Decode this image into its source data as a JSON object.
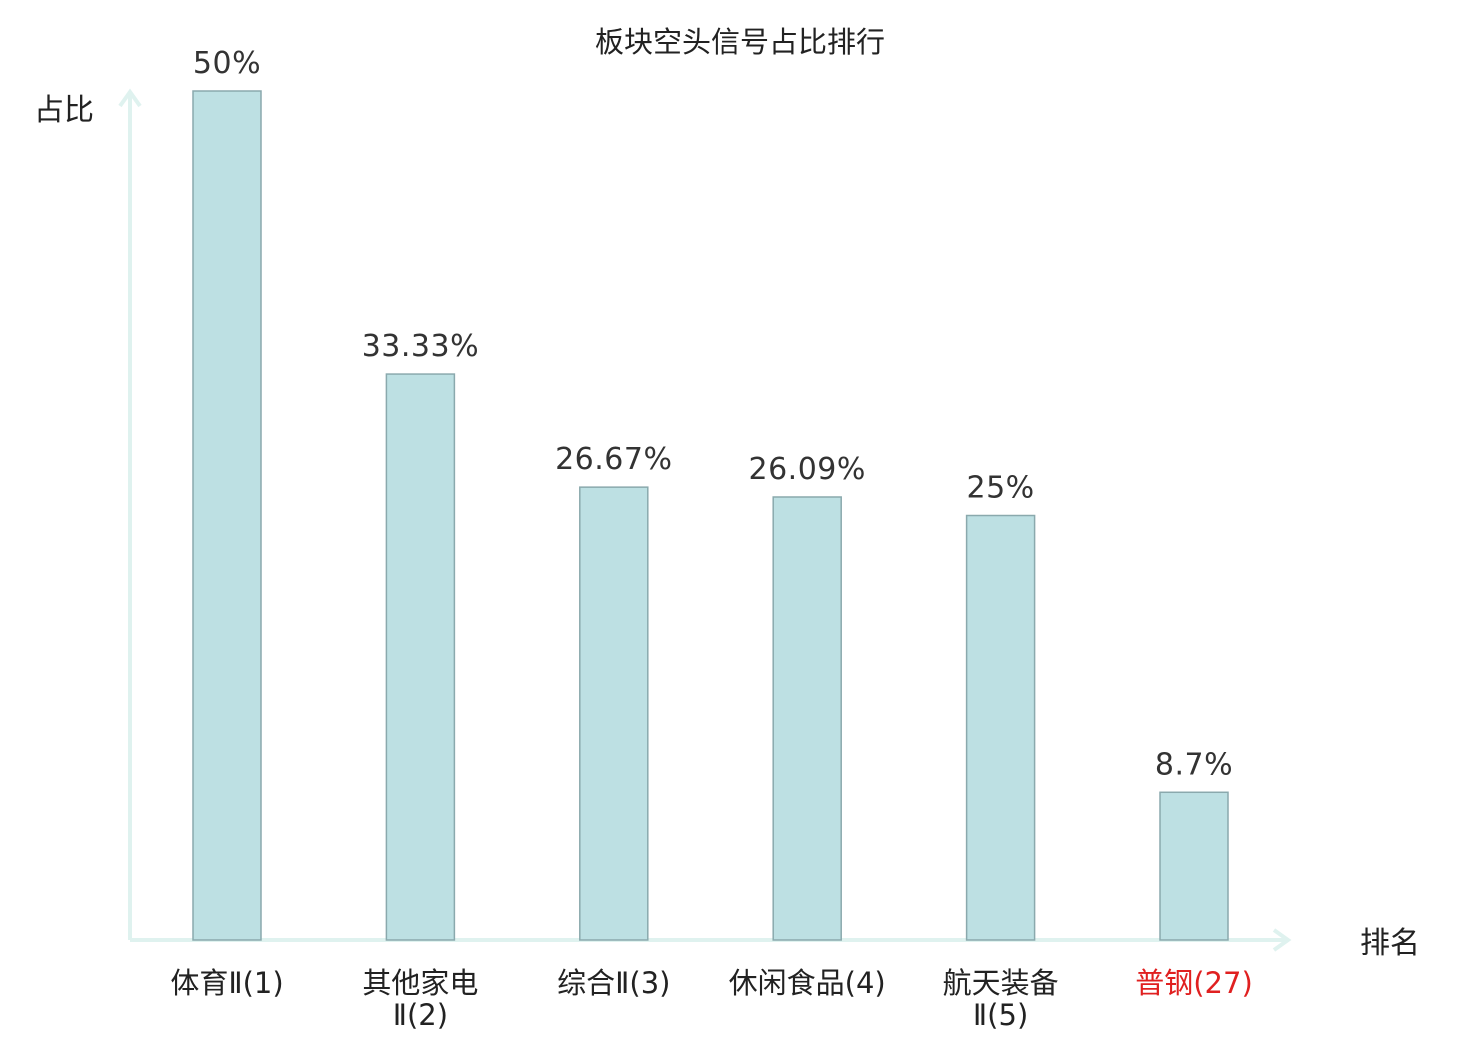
{
  "chart_data": {
    "type": "bar",
    "title": "板块空头信号占比排行",
    "xlabel": "排名",
    "ylabel": "占比",
    "unit": "%",
    "ylim": [
      0,
      50
    ],
    "grid": false,
    "categories": [
      {
        "name": "体育Ⅱ",
        "rank": "(1)",
        "lines": [
          "体育Ⅱ(1)"
        ],
        "highlight": false
      },
      {
        "name": "其他家电Ⅱ",
        "rank": "(2)",
        "lines": [
          "其他家电",
          "Ⅱ(2)"
        ],
        "highlight": false
      },
      {
        "name": "综合Ⅱ",
        "rank": "(3)",
        "lines": [
          "综合Ⅱ(3)"
        ],
        "highlight": false
      },
      {
        "name": "休闲食品",
        "rank": "(4)",
        "lines": [
          "休闲食品(4)"
        ],
        "highlight": false
      },
      {
        "name": "航天装备Ⅱ",
        "rank": "(5)",
        "lines": [
          "航天装备",
          "Ⅱ(5)"
        ],
        "highlight": false
      },
      {
        "name": "普钢",
        "rank": "(27)",
        "lines": [
          "普钢(27)"
        ],
        "highlight": true
      }
    ],
    "values": [
      50,
      33.33,
      26.67,
      26.09,
      25,
      8.7
    ],
    "value_labels": [
      "50%",
      "33.33%",
      "26.67%",
      "26.09%",
      "25%",
      "8.7%"
    ],
    "colors": {
      "bar_fill": "#bde0e3",
      "bar_stroke": "#8aa9ad",
      "axis": "#dff2ef",
      "highlight_label": "#e02020",
      "text": "#222222"
    }
  }
}
